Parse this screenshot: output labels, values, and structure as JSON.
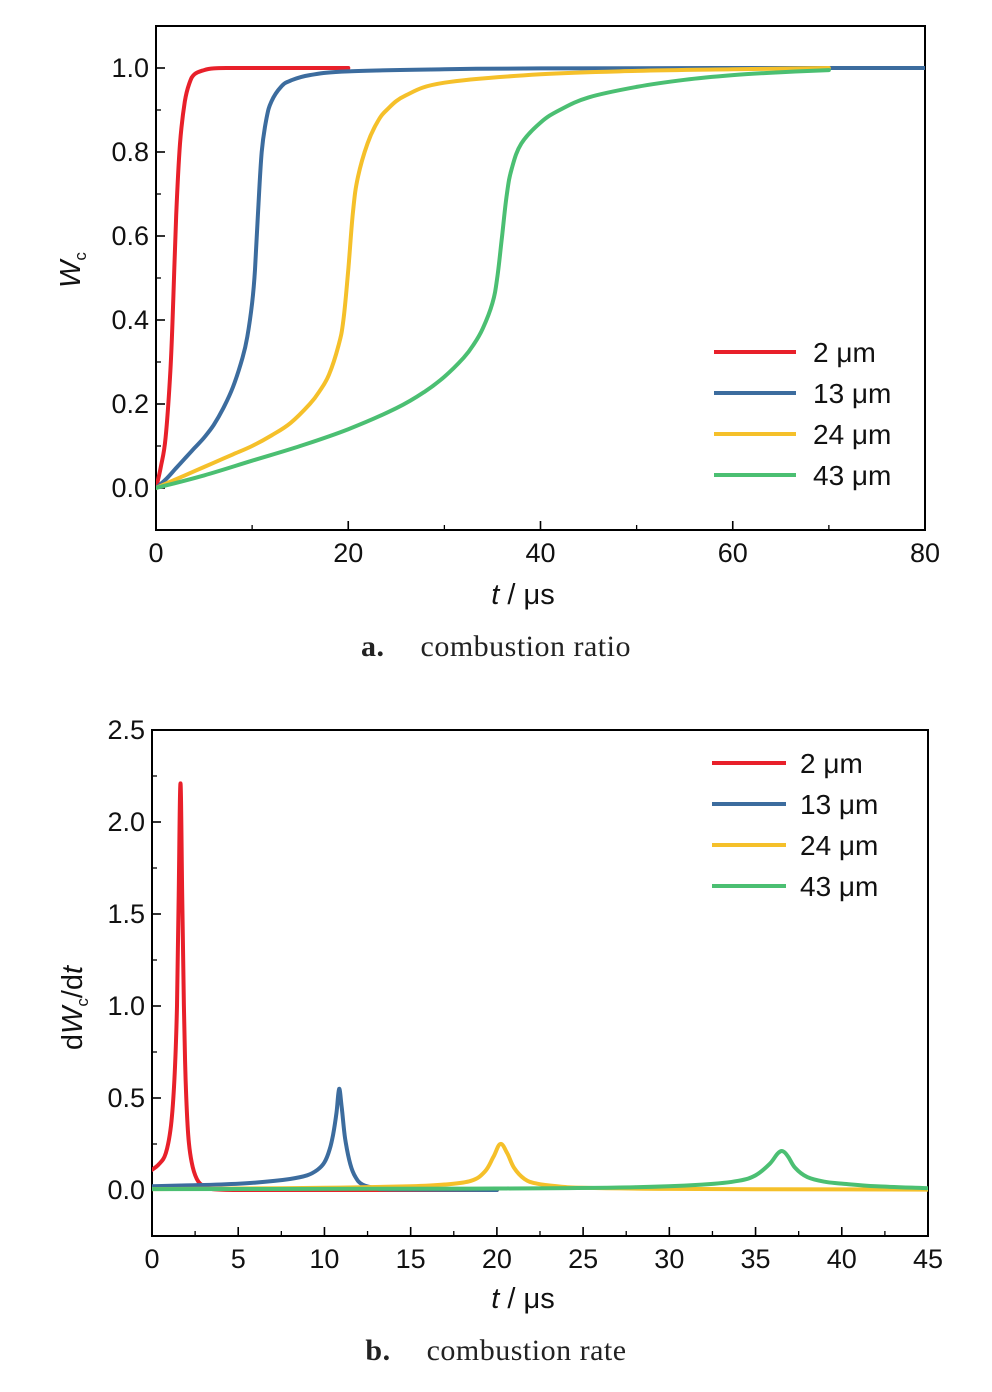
{
  "colors": {
    "2um": "#e8202a",
    "13um": "#3c6c9e",
    "24um": "#f5c02a",
    "43um": "#4bbf72"
  },
  "chart_data": [
    {
      "type": "line",
      "caption_letter": "a.",
      "caption_text": "combustion ratio",
      "xlabel_italic": "t",
      "xlabel_unit": " / μs",
      "ylabel_main": "W",
      "ylabel_sub": "c",
      "xlim": [
        0,
        80
      ],
      "ylim": [
        -0.1,
        1.1
      ],
      "xticks": [
        0,
        20,
        40,
        60,
        80
      ],
      "yticks": [
        0.0,
        0.2,
        0.4,
        0.6,
        0.8,
        1.0
      ],
      "ytick_labels": [
        "0.0",
        "0.2",
        "0.4",
        "0.6",
        "0.8",
        "1.0"
      ],
      "legend_position": "lower-right",
      "series": [
        {
          "name": "2 μm",
          "color": "#e8202a",
          "x": [
            0,
            0.5,
            1,
            1.5,
            1.8,
            2.1,
            2.5,
            3,
            3.5,
            4,
            5,
            6,
            8,
            12,
            20
          ],
          "y": [
            0,
            0.05,
            0.12,
            0.28,
            0.45,
            0.65,
            0.82,
            0.92,
            0.965,
            0.985,
            0.995,
            0.999,
            1.0,
            1.0,
            1.0
          ]
        },
        {
          "name": "13 μm",
          "color": "#3c6c9e",
          "x": [
            0,
            1,
            2,
            3,
            4,
            5,
            6,
            7,
            8,
            9,
            9.5,
            10,
            10.3,
            10.6,
            11,
            11.5,
            12,
            13,
            14,
            16,
            20,
            30,
            40,
            60,
            80
          ],
          "y": [
            0,
            0.02,
            0.045,
            0.07,
            0.095,
            0.12,
            0.15,
            0.19,
            0.24,
            0.31,
            0.36,
            0.44,
            0.52,
            0.65,
            0.8,
            0.88,
            0.92,
            0.955,
            0.97,
            0.983,
            0.992,
            0.997,
            0.999,
            1.0,
            1.0
          ]
        },
        {
          "name": "24 μm",
          "color": "#f5c02a",
          "x": [
            0,
            2,
            4,
            6,
            8,
            10,
            12,
            14,
            16,
            17,
            18,
            19,
            19.5,
            20,
            20.5,
            21,
            22,
            23,
            24,
            26,
            30,
            40,
            50,
            60,
            70
          ],
          "y": [
            0,
            0.02,
            0.04,
            0.06,
            0.08,
            0.1,
            0.125,
            0.155,
            0.2,
            0.23,
            0.27,
            0.34,
            0.4,
            0.52,
            0.66,
            0.74,
            0.82,
            0.87,
            0.9,
            0.935,
            0.965,
            0.985,
            0.993,
            0.997,
            1.0
          ]
        },
        {
          "name": "43 μm",
          "color": "#4bbf72",
          "x": [
            0,
            5,
            10,
            15,
            20,
            25,
            28,
            30,
            32,
            33,
            34,
            35,
            35.5,
            36,
            36.5,
            37,
            38,
            40,
            42,
            45,
            50,
            55,
            60,
            65,
            70
          ],
          "y": [
            0,
            0.03,
            0.065,
            0.1,
            0.14,
            0.19,
            0.23,
            0.265,
            0.31,
            0.34,
            0.38,
            0.44,
            0.5,
            0.6,
            0.7,
            0.76,
            0.82,
            0.87,
            0.9,
            0.93,
            0.955,
            0.972,
            0.983,
            0.99,
            0.995
          ]
        }
      ]
    },
    {
      "type": "line",
      "caption_letter": "b.",
      "caption_text": "combustion rate",
      "xlabel_italic": "t",
      "xlabel_unit": " / μs",
      "ylabel_prefix": "d",
      "ylabel_main": "W",
      "ylabel_sub": "c",
      "ylabel_mid": "/d",
      "ylabel_end": "t",
      "xlim": [
        0,
        45
      ],
      "ylim": [
        -0.25,
        2.5
      ],
      "xticks": [
        0,
        5,
        10,
        15,
        20,
        25,
        30,
        35,
        40,
        45
      ],
      "yticks": [
        0.0,
        0.5,
        1.0,
        1.5,
        2.0,
        2.5
      ],
      "ytick_labels": [
        "0.0",
        "0.5",
        "1.0",
        "1.5",
        "2.0",
        "2.5"
      ],
      "legend_position": "top-right",
      "series": [
        {
          "name": "2 μm",
          "color": "#e8202a",
          "x": [
            0,
            0.4,
            0.8,
            1.1,
            1.3,
            1.45,
            1.55,
            1.65,
            1.75,
            1.85,
            1.95,
            2.1,
            2.3,
            2.6,
            3.0,
            3.5,
            5,
            10,
            20
          ],
          "y": [
            0.11,
            0.14,
            0.2,
            0.35,
            0.6,
            1.0,
            1.6,
            2.21,
            1.6,
            1.0,
            0.6,
            0.3,
            0.15,
            0.06,
            0.02,
            0.005,
            0,
            0,
            0
          ]
        },
        {
          "name": "13 μm",
          "color": "#3c6c9e",
          "x": [
            0,
            2,
            4,
            6,
            8,
            9,
            9.6,
            10,
            10.3,
            10.5,
            10.7,
            10.85,
            11.0,
            11.2,
            11.5,
            11.8,
            12.2,
            13,
            14,
            20
          ],
          "y": [
            0.02,
            0.025,
            0.03,
            0.04,
            0.06,
            0.08,
            0.11,
            0.15,
            0.22,
            0.3,
            0.42,
            0.55,
            0.45,
            0.28,
            0.14,
            0.07,
            0.03,
            0.01,
            0.003,
            0
          ]
        },
        {
          "name": "24 μm",
          "color": "#f5c02a",
          "x": [
            0,
            5,
            10,
            15,
            17,
            18.5,
            19.3,
            19.8,
            20.2,
            20.6,
            21,
            21.6,
            22.3,
            23.5,
            25,
            30,
            40,
            45
          ],
          "y": [
            0.005,
            0.008,
            0.012,
            0.02,
            0.03,
            0.05,
            0.1,
            0.18,
            0.25,
            0.2,
            0.12,
            0.06,
            0.035,
            0.02,
            0.012,
            0.006,
            0.003,
            0.002
          ]
        },
        {
          "name": "43 μm",
          "color": "#4bbf72",
          "x": [
            0,
            10,
            20,
            28,
            32,
            34,
            35,
            35.8,
            36.3,
            36.6,
            36.9,
            37.3,
            38,
            39,
            40,
            42,
            45
          ],
          "y": [
            0.005,
            0.006,
            0.008,
            0.015,
            0.03,
            0.05,
            0.08,
            0.14,
            0.2,
            0.21,
            0.18,
            0.12,
            0.07,
            0.045,
            0.035,
            0.02,
            0.01
          ]
        }
      ]
    }
  ]
}
